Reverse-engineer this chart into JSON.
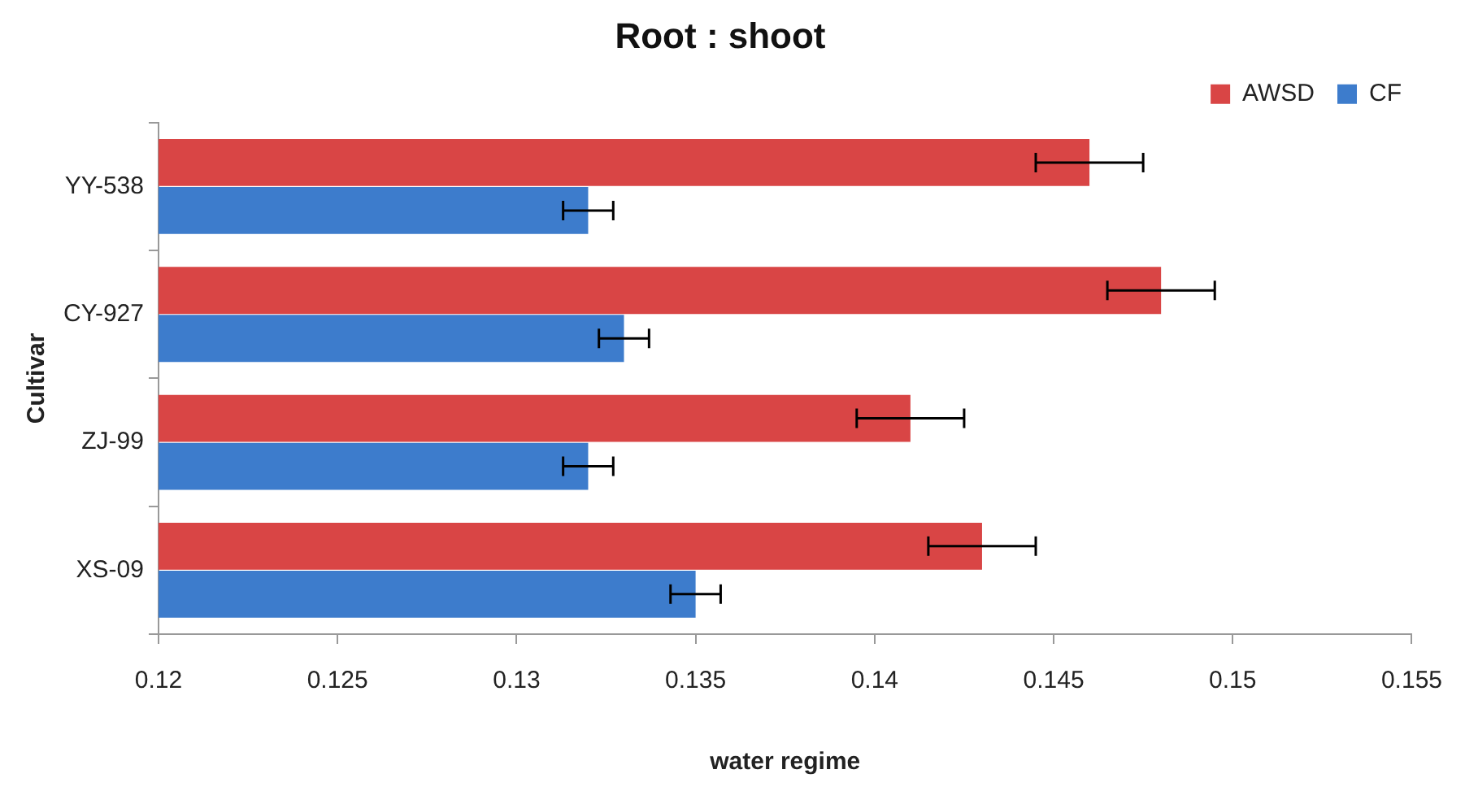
{
  "chart_data": {
    "type": "bar",
    "orientation": "horizontal",
    "title": "Root : shoot",
    "xlabel": "water regime",
    "ylabel": "Cultivar",
    "categories": [
      "YY-538",
      "CY-927",
      "ZJ-99",
      "XS-09"
    ],
    "series": [
      {
        "name": "AWSD",
        "color": "#d94545",
        "values": [
          0.146,
          0.148,
          0.141,
          0.143
        ],
        "errors": [
          0.0015,
          0.0015,
          0.0015,
          0.0015
        ]
      },
      {
        "name": "CF",
        "color": "#3d7ccc",
        "values": [
          0.132,
          0.133,
          0.132,
          0.135
        ],
        "errors": [
          0.0007,
          0.0007,
          0.0007,
          0.0007
        ]
      }
    ],
    "xlim": [
      0.12,
      0.155
    ],
    "xticks": [
      0.12,
      0.125,
      0.13,
      0.135,
      0.14,
      0.145,
      0.15,
      0.155
    ],
    "grid": false,
    "legend": "top right"
  }
}
